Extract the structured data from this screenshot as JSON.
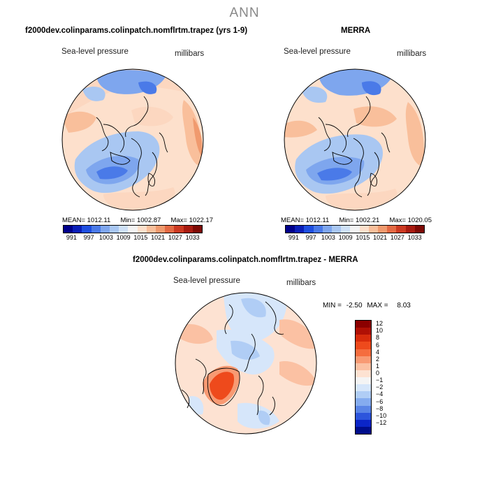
{
  "main_title": "ANN",
  "panels": [
    {
      "title": "f2000dev.colinparams.colinpatch.nomflrtm.trapez (yrs 1-9)",
      "variable": "Sea-level pressure",
      "units": "millibars",
      "stats": {
        "mean": "MEAN= 1012.11",
        "min": "Min= 1002.87",
        "max": "Max= 1022.17"
      }
    },
    {
      "title": "MERRA",
      "variable": "Sea-level pressure",
      "units": "millibars",
      "stats": {
        "mean": "MEAN= 1012.11",
        "min": "Min= 1002.21",
        "max": "Max= 1020.05"
      }
    }
  ],
  "abs_colorbar": {
    "labels": [
      "991",
      "997",
      "1003",
      "1009",
      "1015",
      "1021",
      "1027",
      "1033"
    ],
    "colors": [
      "#00008b",
      "#0a1fb8",
      "#1f4fe0",
      "#4a7ae8",
      "#7ea6ee",
      "#a9c7f2",
      "#cfe1f7",
      "#f4f4f4",
      "#fde0cc",
      "#f9bf9b",
      "#f09a6e",
      "#e36a44",
      "#cc3a22",
      "#a81b10",
      "#7e0a05"
    ]
  },
  "diff_panel": {
    "title": "f2000dev.colinparams.colinpatch.nomflrtm.trapez - MERRA",
    "variable": "Sea-level pressure",
    "units": "millibars",
    "min_label": "MIN =",
    "min_value": "-2.50",
    "max_label": "MAX =",
    "max_value": "8.03"
  },
  "diff_colorbar": {
    "labels": [
      "12",
      "10",
      "8",
      "6",
      "4",
      "2",
      "1",
      "0",
      "−1",
      "−2",
      "−4",
      "−6",
      "−8",
      "−10",
      "−12"
    ],
    "colors": [
      "#8b0000",
      "#b01005",
      "#d82c0c",
      "#ee4a1c",
      "#f56d3e",
      "#f89a73",
      "#fbc1a3",
      "#fde2d2",
      "#f4f4f4",
      "#d6e6fa",
      "#b0cdf5",
      "#85acef",
      "#5a85e6",
      "#2d55dc",
      "#0b25c8",
      "#000d8b"
    ]
  }
}
